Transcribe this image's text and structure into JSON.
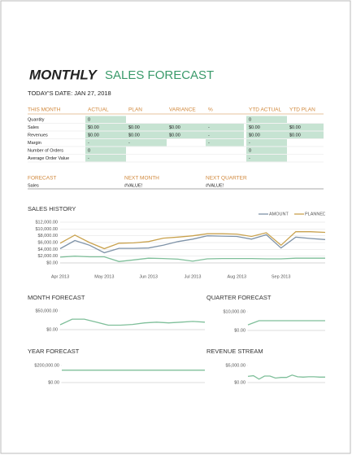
{
  "title": {
    "bold": "MONTHLY",
    "rest": "SALES FORECAST"
  },
  "date_label": "TODAY'S DATE: JAN 27, 2018",
  "table": {
    "headers": [
      "THIS MONTH",
      "ACTUAL",
      "PLAN",
      "VARIANCE",
      "%",
      "YTD ACTUAL",
      "YTD PLAN"
    ],
    "rows": [
      [
        "Quantity",
        "0",
        null,
        null,
        null,
        "0",
        null
      ],
      [
        "Sales",
        "$0.00",
        "$0.00",
        "$0.00",
        "-",
        "$0.00",
        "$0.00"
      ],
      [
        "Revenues",
        "$0.00",
        "$0.00",
        "$0.00",
        "-",
        "$0.00",
        "$0.00"
      ],
      [
        "Margin",
        "-",
        "-",
        null,
        "-",
        "-",
        null
      ],
      [
        "Number of Orders",
        "0",
        null,
        null,
        null,
        "0",
        null
      ],
      [
        "Average Order Value",
        "-",
        null,
        null,
        null,
        "-",
        null
      ]
    ]
  },
  "forecast": {
    "headers": [
      "FORECAST",
      "NEXT MONTH",
      "NEXT QUARTER"
    ],
    "rows": [
      [
        "Sales",
        "#VALUE!",
        "#VALUE!"
      ]
    ]
  },
  "chart_data": [
    {
      "type": "line",
      "title": "SALES HISTORY",
      "categories": [
        "Apr 2013",
        null,
        null,
        "May 2013",
        null,
        null,
        "Jun 2013",
        null,
        null,
        "Jul 2013",
        null,
        null,
        "Aug 2013",
        null,
        null,
        "Sep 2013",
        null,
        null,
        null
      ],
      "series": [
        {
          "name": "AMOUNT",
          "color": "#7f93a8",
          "values": [
            4200,
            6600,
            5200,
            3000,
            4300,
            4300,
            4400,
            5200,
            6300,
            7000,
            8000,
            7900,
            7800,
            7000,
            8300,
            4400,
            7600,
            7200,
            6900
          ]
        },
        {
          "name": "PLANNED",
          "color": "#c9a24e",
          "values": [
            5800,
            8200,
            6000,
            4200,
            5800,
            5900,
            6300,
            7300,
            7600,
            8000,
            8600,
            8600,
            8500,
            7800,
            8900,
            5200,
            9200,
            9200,
            9000
          ]
        },
        {
          "color": "#7fbf9a",
          "values": [
            1700,
            2000,
            1800,
            1800,
            400,
            900,
            1400,
            1300,
            1100,
            500,
            1200,
            1300,
            1300,
            1300,
            1200,
            1200,
            1400,
            1400,
            1400
          ]
        }
      ],
      "ylim": [
        0,
        12000
      ],
      "yticks": [
        {
          "value": 0,
          "label": "$0.00"
        },
        {
          "value": 2000,
          "label": "$2,000.00"
        },
        {
          "value": 4000,
          "label": "$4,000.00"
        },
        {
          "value": 6000,
          "label": "$6,000.00"
        },
        {
          "value": 8000,
          "label": "$8,000.00"
        },
        {
          "value": 10000,
          "label": "$10,000.00"
        },
        {
          "value": 12000,
          "label": "$12,000.00"
        }
      ],
      "grid": true,
      "legend": "top-right"
    },
    {
      "type": "line",
      "title": "MONTH FORECAST",
      "categories": [
        null,
        null,
        null,
        null,
        null,
        null,
        null,
        null,
        null,
        null,
        null,
        null,
        null
      ],
      "series": [
        {
          "color": "#7fbf9a",
          "values": [
            13000,
            28000,
            28000,
            20000,
            12000,
            12000,
            14000,
            18000,
            20000,
            18000,
            20000,
            22000,
            20000
          ]
        }
      ],
      "ylim": [
        0,
        50000
      ],
      "yticks": [
        {
          "value": 0,
          "label": "$0.00"
        },
        {
          "value": 50000,
          "label": "$50,000.00"
        }
      ],
      "grid": false
    },
    {
      "type": "line",
      "title": "QUARTER FORECAST",
      "categories": [
        null,
        null,
        null,
        null,
        null,
        null,
        null,
        null
      ],
      "series": [
        {
          "color": "#7fbf9a",
          "values": [
            3000,
            5200,
            5200,
            5200,
            5200,
            5200,
            5200,
            5200
          ]
        }
      ],
      "ylim": [
        0,
        10000
      ],
      "yticks": [
        {
          "value": 0,
          "label": "$0.00"
        },
        {
          "value": 10000,
          "label": "$10,000.00"
        }
      ],
      "grid": false
    },
    {
      "type": "line",
      "title": "YEAR FORECAST",
      "categories": [
        null,
        null,
        null,
        null
      ],
      "series": [
        {
          "color": "#7fbf9a",
          "values": [
            145000,
            145000,
            145000,
            145000
          ]
        }
      ],
      "ylim": [
        0,
        200000
      ],
      "yticks": [
        {
          "value": 0,
          "label": "$0.00"
        },
        {
          "value": 200000,
          "label": "$200,000.00"
        }
      ],
      "grid": false
    },
    {
      "type": "line",
      "title": "REVENUE STREAM",
      "categories": [
        null,
        null,
        null,
        null,
        null,
        null,
        null,
        null,
        null,
        null,
        null,
        null,
        null,
        null,
        null
      ],
      "series": [
        {
          "color": "#7fbf9a",
          "values": [
            1800,
            2000,
            1000,
            1900,
            1900,
            1300,
            1500,
            1500,
            2200,
            1700,
            1600,
            1700,
            1700,
            1600,
            1600
          ]
        }
      ],
      "ylim": [
        0,
        5000
      ],
      "yticks": [
        {
          "value": 0,
          "label": "$0.00"
        },
        {
          "value": 5000,
          "label": "$5,000.00"
        }
      ],
      "grid": false
    }
  ]
}
